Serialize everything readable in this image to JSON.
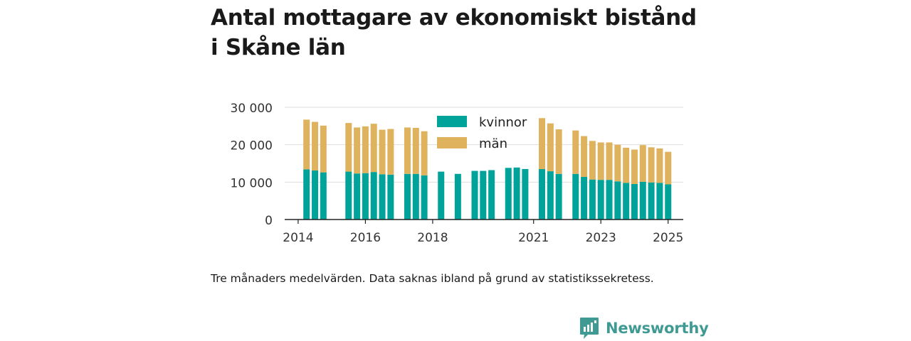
{
  "title": "Antal mottagare av ekonomiskt bistånd i Skåne län",
  "caption": "Tre månaders medelvärden. Data saknas ibland på grund av statistikssekretess.",
  "brand": {
    "name": "Newsworthy",
    "color": "#3f9a93"
  },
  "colors": {
    "kvinnor": "#00a39a",
    "man": "#dfb25d",
    "grid": "#dddddd",
    "axis": "#222222"
  },
  "chart_data": {
    "type": "bar",
    "stacked": true,
    "ylim": [
      0,
      30000
    ],
    "yticks": [
      "0",
      "10 000",
      "20 000",
      "30 000"
    ],
    "ytick_values": [
      0,
      10000,
      20000,
      30000
    ],
    "xticks": [
      "2014",
      "2016",
      "2018",
      "2021",
      "2023",
      "2025"
    ],
    "xtick_values": [
      2014,
      2016,
      2018,
      2021,
      2023,
      2025
    ],
    "legend": {
      "position": "top-center",
      "entries": [
        "kvinnor",
        "män"
      ]
    },
    "x": [
      2014.25,
      2014.5,
      2014.75,
      2015.5,
      2015.75,
      2016.0,
      2016.25,
      2016.5,
      2016.75,
      2017.25,
      2017.5,
      2017.75,
      2018.25,
      2018.75,
      2019.25,
      2019.5,
      2019.75,
      2020.25,
      2020.5,
      2020.75,
      2021.25,
      2021.5,
      2021.75,
      2022.25,
      2022.5,
      2022.75,
      2023.0,
      2023.25,
      2023.5,
      2023.75,
      2024.0,
      2024.25,
      2024.5,
      2024.75,
      2025.0
    ],
    "series": [
      {
        "name": "kvinnor",
        "values": [
          13400,
          13100,
          12600,
          12800,
          12300,
          12400,
          12700,
          12100,
          12000,
          12200,
          12200,
          11800,
          12800,
          12200,
          13000,
          13000,
          13200,
          13800,
          13900,
          13500,
          13500,
          12900,
          12200,
          12200,
          11400,
          10700,
          10600,
          10600,
          10200,
          9800,
          9500,
          10100,
          9900,
          9800,
          9400
        ]
      },
      {
        "name": "män",
        "values": [
          13300,
          13000,
          12500,
          13000,
          12300,
          12500,
          12900,
          11900,
          12200,
          12400,
          12300,
          11800,
          null,
          null,
          null,
          null,
          null,
          null,
          null,
          null,
          13600,
          12800,
          11900,
          11600,
          10900,
          10300,
          10000,
          10000,
          9800,
          9400,
          9200,
          9800,
          9400,
          9200,
          8700
        ]
      }
    ]
  }
}
